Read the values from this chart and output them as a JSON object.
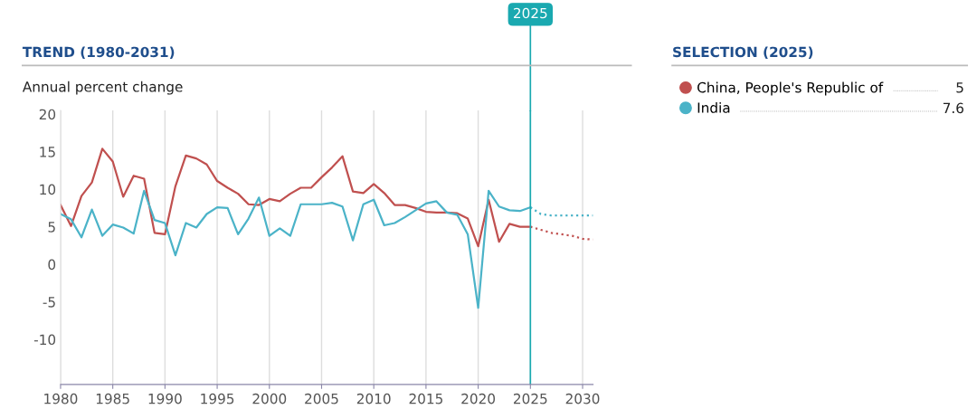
{
  "chart_data": {
    "type": "line",
    "title": "TREND (1980-2031)",
    "ylabel": "Annual percent change",
    "legend_title": "SELECTION (2025)",
    "xlim": [
      1980,
      2031
    ],
    "xticks": [
      1980,
      1985,
      1990,
      1995,
      2000,
      2005,
      2010,
      2015,
      2020,
      2025,
      2030
    ],
    "ylim": [
      -16,
      20.5
    ],
    "yticks": [
      -10,
      -5,
      0,
      5,
      10,
      15,
      20
    ],
    "grid": "x",
    "legend": "right",
    "ref_lines": [
      {
        "axis": "x",
        "value": 2025,
        "label": "2025",
        "color": "#1aa9b0"
      }
    ],
    "annotations": [
      "5",
      "7.6"
    ],
    "series": [
      {
        "name": "China, People's Republic of",
        "color": "#c0504f",
        "line_style": "solid",
        "x": [
          1980,
          1981,
          1982,
          1983,
          1984,
          1985,
          1986,
          1987,
          1988,
          1989,
          1990,
          1991,
          1992,
          1993,
          1994,
          1995,
          1996,
          1997,
          1998,
          1999,
          2000,
          2001,
          2002,
          2003,
          2004,
          2005,
          2006,
          2007,
          2008,
          2009,
          2010,
          2011,
          2012,
          2013,
          2014,
          2015,
          2016,
          2017,
          2018,
          2019,
          2020,
          2021,
          2022,
          2023,
          2024,
          2025
        ],
        "values": [
          7.9,
          5.1,
          9.1,
          10.9,
          15.4,
          13.7,
          9.0,
          11.8,
          11.4,
          4.2,
          4.0,
          10.4,
          14.5,
          14.1,
          13.3,
          11.1,
          10.2,
          9.4,
          8.0,
          7.9,
          8.7,
          8.4,
          9.4,
          10.2,
          10.2,
          11.6,
          12.9,
          14.4,
          9.7,
          9.5,
          10.7,
          9.5,
          7.9,
          7.9,
          7.5,
          7.0,
          6.9,
          6.9,
          6.8,
          6.1,
          2.4,
          8.6,
          3.0,
          5.4,
          5.0,
          5.0
        ]
      },
      {
        "name": "India",
        "color": "#4bb3c8",
        "line_style": "solid",
        "x": [
          1980,
          1981,
          1982,
          1983,
          1984,
          1985,
          1986,
          1987,
          1988,
          1989,
          1990,
          1991,
          1992,
          1993,
          1994,
          1995,
          1996,
          1997,
          1998,
          1999,
          2000,
          2001,
          2002,
          2003,
          2004,
          2005,
          2006,
          2007,
          2008,
          2009,
          2010,
          2011,
          2012,
          2013,
          2014,
          2015,
          2016,
          2017,
          2018,
          2019,
          2020,
          2021,
          2022,
          2023,
          2024,
          2025
        ],
        "values": [
          6.7,
          6.0,
          3.6,
          7.3,
          3.8,
          5.3,
          4.9,
          4.1,
          9.8,
          5.9,
          5.5,
          1.2,
          5.5,
          4.9,
          6.7,
          7.6,
          7.5,
          4.0,
          6.1,
          8.9,
          3.8,
          4.8,
          3.8,
          8.0,
          8.0,
          8.0,
          8.2,
          7.7,
          3.2,
          8.0,
          8.6,
          5.2,
          5.5,
          6.3,
          7.2,
          8.1,
          8.4,
          6.9,
          6.6,
          4.0,
          -5.8,
          9.8,
          7.7,
          7.2,
          7.1,
          7.6
        ]
      },
      {
        "color": "#c0504f",
        "line_style": "dotted",
        "x": [
          2025,
          2026,
          2027,
          2028,
          2029,
          2030,
          2031
        ],
        "values": [
          5.0,
          4.6,
          4.2,
          4.0,
          3.8,
          3.4,
          3.3
        ]
      },
      {
        "color": "#4bb3c8",
        "line_style": "dotted",
        "x": [
          2025,
          2026,
          2027,
          2028,
          2029,
          2030,
          2031
        ],
        "values": [
          7.6,
          6.7,
          6.5,
          6.5,
          6.5,
          6.5,
          6.5
        ]
      }
    ]
  }
}
